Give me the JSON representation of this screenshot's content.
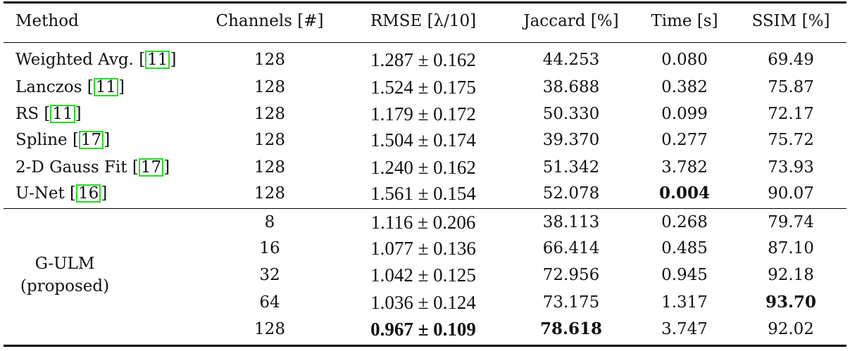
{
  "headers": [
    "Method",
    "Channels [#]",
    "RMSE [λ/10]",
    "Jaccard [%]",
    "Time [s]",
    "SSIM [%]"
  ],
  "rows": [
    {
      "method": "Weighted Avg. ",
      "cite": "11",
      "channels": "128",
      "rmse": "1.287 ± 0.162",
      "jaccard": "44.253",
      "time": "0.080",
      "ssim": "69.49"
    },
    {
      "method": "Lanczos ",
      "cite": "11",
      "channels": "128",
      "rmse": "1.524 ± 0.175",
      "jaccard": "38.688",
      "time": "0.382",
      "ssim": "75.87"
    },
    {
      "method": "RS ",
      "cite": "11",
      "channels": "128",
      "rmse": "1.179 ± 0.172",
      "jaccard": "50.330",
      "time": "0.099",
      "ssim": "72.17"
    },
    {
      "method": "Spline ",
      "cite": "17",
      "channels": "128",
      "rmse": "1.504 ± 0.174",
      "jaccard": "39.370",
      "time": "0.277",
      "ssim": "75.72"
    },
    {
      "method": "2-D Gauss Fit ",
      "cite": "17",
      "channels": "128",
      "rmse": "1.240 ± 0.162",
      "jaccard": "51.342",
      "time": "3.782",
      "ssim": "73.93"
    },
    {
      "method": "U-Net ",
      "cite": "16",
      "channels": "128",
      "rmse": "1.561 ± 0.154",
      "jaccard": "52.078",
      "time": "0.004",
      "ssim": "90.07"
    }
  ],
  "proposed": {
    "method_line1": "G-ULM",
    "method_line2": "(proposed)",
    "rows": [
      {
        "channels": "8",
        "rmse": "1.116 ± 0.206",
        "jaccard": "38.113",
        "time": "0.268",
        "ssim": "79.74"
      },
      {
        "channels": "16",
        "rmse": "1.077 ± 0.136",
        "jaccard": "66.414",
        "time": "0.485",
        "ssim": "87.10"
      },
      {
        "channels": "32",
        "rmse": "1.042 ± 0.125",
        "jaccard": "72.956",
        "time": "0.945",
        "ssim": "92.18"
      },
      {
        "channels": "64",
        "rmse": "1.036 ± 0.124",
        "jaccard": "73.175",
        "time": "1.317",
        "ssim": "93.70"
      },
      {
        "channels": "128",
        "rmse": "0.967 ± 0.109",
        "jaccard": "78.618",
        "time": "3.747",
        "ssim": "92.02"
      }
    ]
  }
}
